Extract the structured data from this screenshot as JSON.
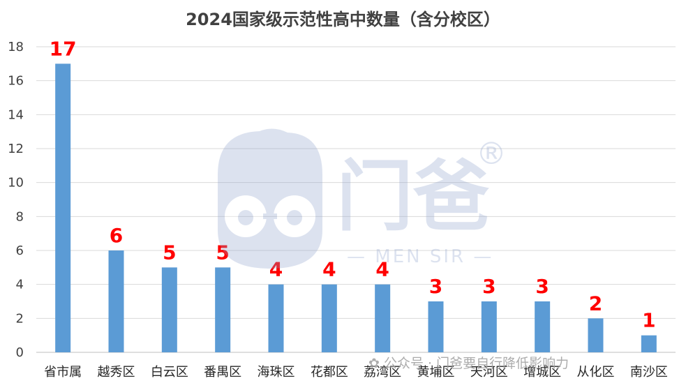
{
  "chart_data": {
    "type": "bar",
    "title": "2024国家级示范性高中数量（含分校区）",
    "categories": [
      "省市属",
      "越秀区",
      "白云区",
      "番禺区",
      "海珠区",
      "花都区",
      "荔湾区",
      "黄埔区",
      "天河区",
      "增城区",
      "从化区",
      "南沙区"
    ],
    "series": [
      {
        "values": [
          17,
          6,
          5,
          5,
          4,
          4,
          4,
          3,
          3,
          3,
          2,
          1
        ]
      }
    ],
    "ylim": [
      0,
      18
    ],
    "yticks": [
      0,
      2,
      4,
      6,
      8,
      10,
      12,
      14,
      16,
      18
    ],
    "grid": true,
    "bar_color": "#5b9bd5",
    "label_color": "#ff0000"
  },
  "watermark": {
    "brand": "门爸",
    "brand_en": "— MEN SIR —",
    "footer": "公众号 · 门爸要自行降低影响力"
  }
}
